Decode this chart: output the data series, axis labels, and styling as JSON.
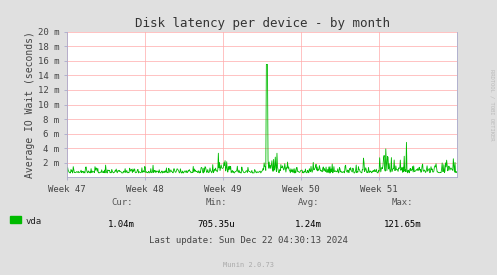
{
  "title": "Disk latency per device - by month",
  "ylabel": "Average IO Wait (seconds)",
  "background_color": "#e0e0e0",
  "plot_bg_color": "#FFFFFF",
  "grid_color": "#ffaaaa",
  "line_color": "#00BB00",
  "line_width": 0.6,
  "yticks_labels": [
    "2 m",
    "4 m",
    "6 m",
    "8 m",
    "10 m",
    "12 m",
    "14 m",
    "16 m",
    "18 m",
    "20 m"
  ],
  "yticks_values": [
    0.002,
    0.004,
    0.006,
    0.008,
    0.01,
    0.012,
    0.014,
    0.016,
    0.018,
    0.02
  ],
  "ylim": [
    0,
    0.02
  ],
  "xticks_labels": [
    "Week 47",
    "Week 48",
    "Week 49",
    "Week 50",
    "Week 51"
  ],
  "xtick_positions": [
    0.0,
    0.2,
    0.4,
    0.6,
    0.8
  ],
  "legend_label": "vda",
  "legend_color": "#00BB00",
  "cur_label": "Cur:",
  "cur_val": "1.04m",
  "min_label": "Min:",
  "min_val": "705.35u",
  "avg_label": "Avg:",
  "avg_val": "1.24m",
  "max_label": "Max:",
  "max_val": "121.65m",
  "last_update": "Last update: Sun Dec 22 04:30:13 2024",
  "munin_version": "Munin 2.0.73",
  "watermark": "RRDTOOL / TOBI OETIKER",
  "title_fontsize": 9,
  "ylabel_fontsize": 7,
  "tick_fontsize": 6.5,
  "stats_fontsize": 6.5,
  "watermark_fontsize": 4,
  "munin_fontsize": 5
}
